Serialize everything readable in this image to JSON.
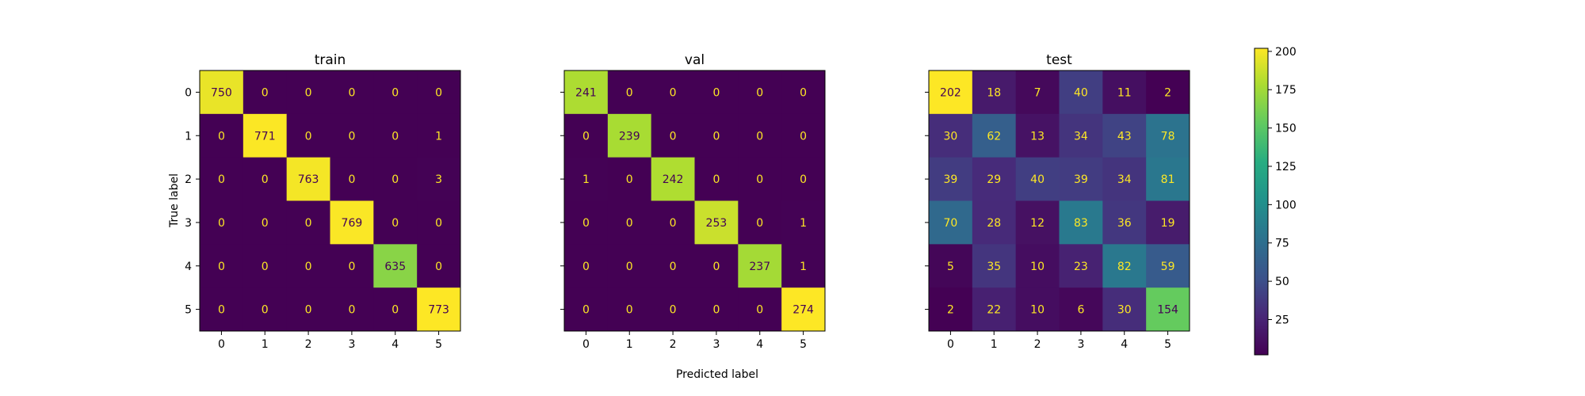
{
  "chart_data": {
    "type": "heatmap",
    "xlabel": "Predicted label",
    "ylabel": "True label",
    "colormap": "viridis",
    "labels": [
      "0",
      "1",
      "2",
      "3",
      "4",
      "5"
    ],
    "panels": [
      {
        "title": "train",
        "matrix": [
          [
            750,
            0,
            0,
            0,
            0,
            0
          ],
          [
            0,
            771,
            0,
            0,
            0,
            1
          ],
          [
            0,
            0,
            763,
            0,
            0,
            3
          ],
          [
            0,
            0,
            0,
            769,
            0,
            0
          ],
          [
            0,
            0,
            0,
            0,
            635,
            0
          ],
          [
            0,
            0,
            0,
            0,
            0,
            773
          ]
        ]
      },
      {
        "title": "val",
        "matrix": [
          [
            241,
            0,
            0,
            0,
            0,
            0
          ],
          [
            0,
            239,
            0,
            0,
            0,
            0
          ],
          [
            1,
            0,
            242,
            0,
            0,
            0
          ],
          [
            0,
            0,
            0,
            253,
            0,
            1
          ],
          [
            0,
            0,
            0,
            0,
            237,
            1
          ],
          [
            0,
            0,
            0,
            0,
            0,
            274
          ]
        ]
      },
      {
        "title": "test",
        "matrix": [
          [
            202,
            18,
            7,
            40,
            11,
            2
          ],
          [
            30,
            62,
            13,
            34,
            43,
            78
          ],
          [
            39,
            29,
            40,
            39,
            34,
            81
          ],
          [
            70,
            28,
            12,
            83,
            36,
            19
          ],
          [
            5,
            35,
            10,
            23,
            82,
            59
          ],
          [
            2,
            22,
            10,
            6,
            30,
            154
          ]
        ]
      }
    ],
    "colorbar": {
      "range": [
        2,
        202
      ],
      "ticks": [
        25,
        50,
        75,
        100,
        125,
        150,
        175,
        200
      ]
    }
  }
}
